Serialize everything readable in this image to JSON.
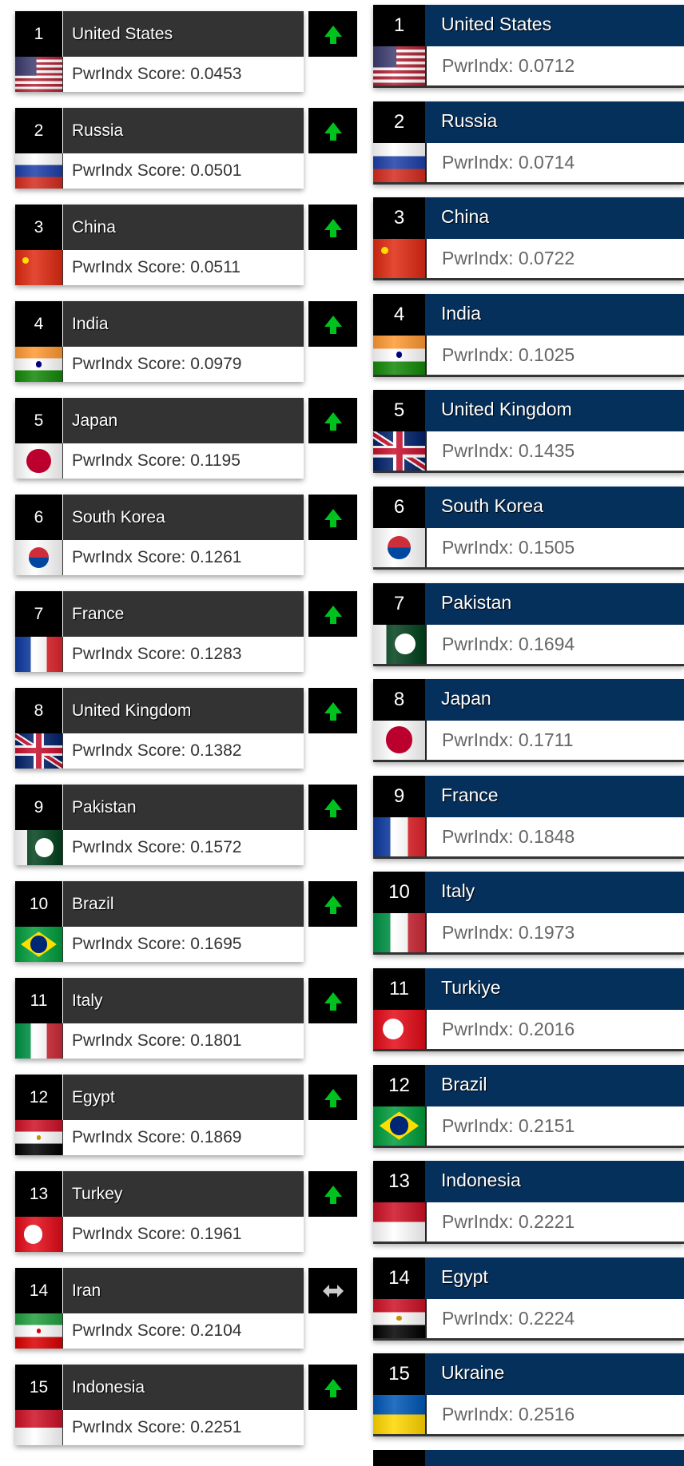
{
  "left_ranking": {
    "score_prefix": "PwrIndx Score: ",
    "trend_colors": {
      "up": "#00c21d",
      "same": "#cccccc"
    },
    "rows": [
      {
        "rank": "1",
        "country": "United States",
        "score": "PwrIndx Score: 0.0453",
        "flag": "us",
        "trend": "up"
      },
      {
        "rank": "2",
        "country": "Russia",
        "score": "PwrIndx Score: 0.0501",
        "flag": "ru",
        "trend": "up"
      },
      {
        "rank": "3",
        "country": "China",
        "score": "PwrIndx Score: 0.0511",
        "flag": "cn",
        "trend": "up"
      },
      {
        "rank": "4",
        "country": "India",
        "score": "PwrIndx Score: 0.0979",
        "flag": "in",
        "trend": "up"
      },
      {
        "rank": "5",
        "country": "Japan",
        "score": "PwrIndx Score: 0.1195",
        "flag": "jp",
        "trend": "up"
      },
      {
        "rank": "6",
        "country": "South Korea",
        "score": "PwrIndx Score: 0.1261",
        "flag": "kr",
        "trend": "up"
      },
      {
        "rank": "7",
        "country": "France",
        "score": "PwrIndx Score: 0.1283",
        "flag": "fr",
        "trend": "up"
      },
      {
        "rank": "8",
        "country": "United Kingdom",
        "score": "PwrIndx Score: 0.1382",
        "flag": "gb",
        "trend": "up"
      },
      {
        "rank": "9",
        "country": "Pakistan",
        "score": "PwrIndx Score: 0.1572",
        "flag": "pk",
        "trend": "up"
      },
      {
        "rank": "10",
        "country": "Brazil",
        "score": "PwrIndx Score: 0.1695",
        "flag": "br",
        "trend": "up"
      },
      {
        "rank": "11",
        "country": "Italy",
        "score": "PwrIndx Score: 0.1801",
        "flag": "it",
        "trend": "up"
      },
      {
        "rank": "12",
        "country": "Egypt",
        "score": "PwrIndx Score: 0.1869",
        "flag": "eg",
        "trend": "up"
      },
      {
        "rank": "13",
        "country": "Turkey",
        "score": "PwrIndx Score: 0.1961",
        "flag": "tr",
        "trend": "up"
      },
      {
        "rank": "14",
        "country": "Iran",
        "score": "PwrIndx Score: 0.2104",
        "flag": "ir",
        "trend": "same"
      },
      {
        "rank": "15",
        "country": "Indonesia",
        "score": "PwrIndx Score: 0.2251",
        "flag": "id",
        "trend": "up"
      }
    ]
  },
  "right_ranking": {
    "header_color": "#05305c",
    "rows": [
      {
        "rank": "1",
        "country": "United States",
        "score": "PwrIndx: 0.0712",
        "flag": "us"
      },
      {
        "rank": "2",
        "country": "Russia",
        "score": "PwrIndx: 0.0714",
        "flag": "ru"
      },
      {
        "rank": "3",
        "country": "China",
        "score": "PwrIndx: 0.0722",
        "flag": "cn"
      },
      {
        "rank": "4",
        "country": "India",
        "score": "PwrIndx: 0.1025",
        "flag": "in"
      },
      {
        "rank": "5",
        "country": "United Kingdom",
        "score": "PwrIndx: 0.1435",
        "flag": "gb"
      },
      {
        "rank": "6",
        "country": "South Korea",
        "score": "PwrIndx: 0.1505",
        "flag": "kr"
      },
      {
        "rank": "7",
        "country": "Pakistan",
        "score": "PwrIndx: 0.1694",
        "flag": "pk"
      },
      {
        "rank": "8",
        "country": "Japan",
        "score": "PwrIndx: 0.1711",
        "flag": "jp"
      },
      {
        "rank": "9",
        "country": "France",
        "score": "PwrIndx: 0.1848",
        "flag": "fr"
      },
      {
        "rank": "10",
        "country": "Italy",
        "score": "PwrIndx: 0.1973",
        "flag": "it"
      },
      {
        "rank": "11",
        "country": "Turkiye",
        "score": "PwrIndx: 0.2016",
        "flag": "tr"
      },
      {
        "rank": "12",
        "country": "Brazil",
        "score": "PwrIndx: 0.2151",
        "flag": "br"
      },
      {
        "rank": "13",
        "country": "Indonesia",
        "score": "PwrIndx: 0.2221",
        "flag": "id"
      },
      {
        "rank": "14",
        "country": "Egypt",
        "score": "PwrIndx: 0.2224",
        "flag": "eg"
      },
      {
        "rank": "15",
        "country": "Ukraine",
        "score": "PwrIndx: 0.2516",
        "flag": "ua"
      }
    ]
  }
}
